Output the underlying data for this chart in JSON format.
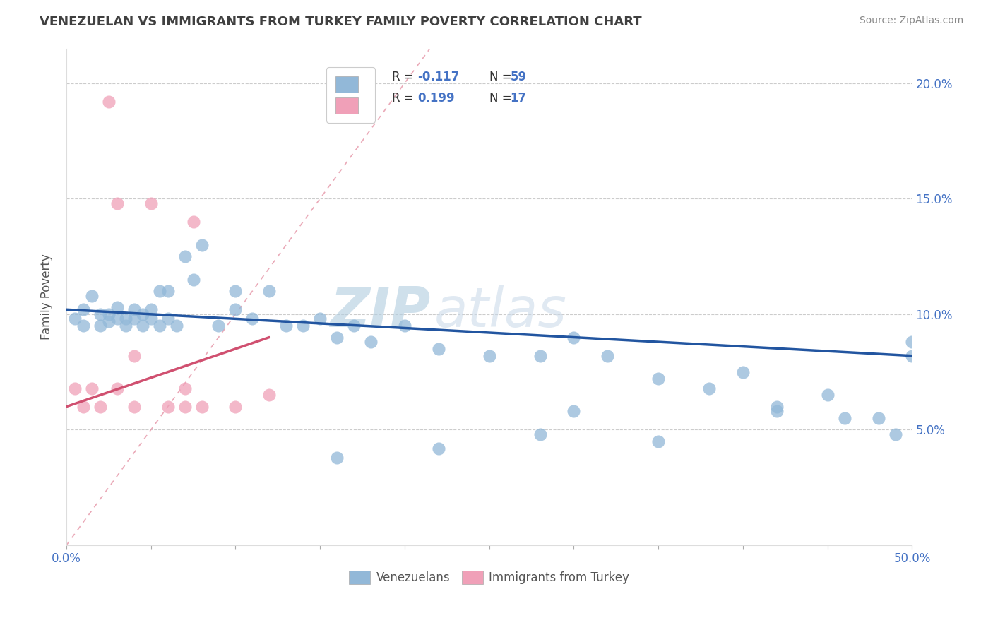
{
  "title": "VENEZUELAN VS IMMIGRANTS FROM TURKEY FAMILY POVERTY CORRELATION CHART",
  "source": "Source: ZipAtlas.com",
  "ylabel": "Family Poverty",
  "xlim": [
    0,
    0.5
  ],
  "ylim": [
    0,
    0.215
  ],
  "xticks": [
    0.0,
    0.05,
    0.1,
    0.15,
    0.2,
    0.25,
    0.3,
    0.35,
    0.4,
    0.45,
    0.5
  ],
  "yticks_right": [
    0.05,
    0.1,
    0.15,
    0.2
  ],
  "ytick_labels_right": [
    "5.0%",
    "10.0%",
    "15.0%",
    "20.0%"
  ],
  "blue_color": "#92b8d8",
  "pink_color": "#f0a0b8",
  "trend_blue_color": "#2255a0",
  "trend_pink_color": "#d05070",
  "diag_color": "#e8a0b0",
  "watermark_zip": "ZIP",
  "watermark_atlas": "atlas",
  "watermark_zip_color": "#b8d0e8",
  "watermark_atlas_color": "#c8d8e8",
  "venezuelans_x": [
    0.005,
    0.01,
    0.01,
    0.015,
    0.02,
    0.02,
    0.025,
    0.025,
    0.03,
    0.03,
    0.035,
    0.035,
    0.04,
    0.04,
    0.045,
    0.045,
    0.05,
    0.05,
    0.055,
    0.055,
    0.06,
    0.06,
    0.065,
    0.07,
    0.075,
    0.08,
    0.09,
    0.1,
    0.1,
    0.11,
    0.12,
    0.13,
    0.14,
    0.15,
    0.16,
    0.17,
    0.18,
    0.2,
    0.22,
    0.25,
    0.28,
    0.3,
    0.32,
    0.35,
    0.38,
    0.4,
    0.42,
    0.42,
    0.45,
    0.46,
    0.48,
    0.49,
    0.5,
    0.35,
    0.28,
    0.22,
    0.16,
    0.3,
    0.5
  ],
  "venezuelans_y": [
    0.098,
    0.102,
    0.095,
    0.108,
    0.1,
    0.095,
    0.1,
    0.097,
    0.098,
    0.103,
    0.095,
    0.098,
    0.098,
    0.102,
    0.095,
    0.1,
    0.098,
    0.102,
    0.11,
    0.095,
    0.11,
    0.098,
    0.095,
    0.125,
    0.115,
    0.13,
    0.095,
    0.102,
    0.11,
    0.098,
    0.11,
    0.095,
    0.095,
    0.098,
    0.09,
    0.095,
    0.088,
    0.095,
    0.085,
    0.082,
    0.082,
    0.09,
    0.082,
    0.072,
    0.068,
    0.075,
    0.06,
    0.058,
    0.065,
    0.055,
    0.055,
    0.048,
    0.082,
    0.045,
    0.048,
    0.042,
    0.038,
    0.058,
    0.088
  ],
  "turkey_x": [
    0.005,
    0.01,
    0.015,
    0.02,
    0.025,
    0.03,
    0.03,
    0.04,
    0.04,
    0.05,
    0.06,
    0.07,
    0.07,
    0.075,
    0.08,
    0.1,
    0.12
  ],
  "turkey_y": [
    0.068,
    0.06,
    0.068,
    0.06,
    0.192,
    0.148,
    0.068,
    0.082,
    0.06,
    0.148,
    0.06,
    0.06,
    0.068,
    0.14,
    0.06,
    0.06,
    0.065
  ],
  "blue_trend": [
    0.0,
    0.102,
    0.5,
    0.082
  ],
  "pink_trend": [
    0.0,
    0.06,
    0.12,
    0.09
  ],
  "diag_line": [
    0.0,
    0.0,
    0.215,
    0.215
  ],
  "background_color": "#ffffff",
  "grid_color": "#cccccc",
  "title_color": "#404040",
  "source_color": "#888888",
  "axis_label_color": "#555555",
  "legend_r_color": "#333333",
  "legend_val_color": "#4472c4",
  "legend_n_color": "#333333"
}
